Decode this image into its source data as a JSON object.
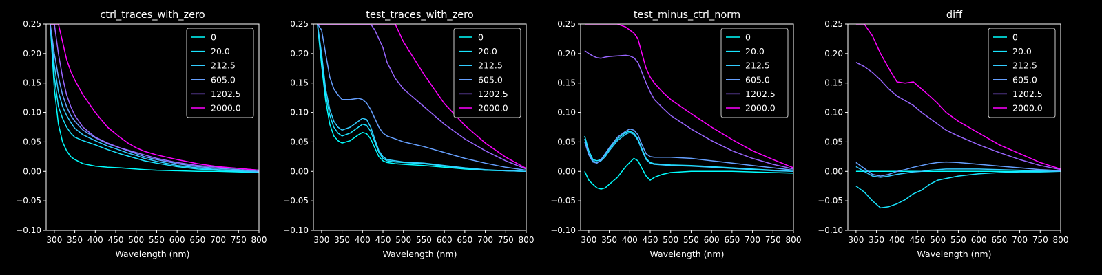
{
  "figure": {
    "background": "#000000",
    "foreground": "#ffffff"
  },
  "chart_data": [
    {
      "type": "line",
      "title": "ctrl_traces_with_zero",
      "xlabel": "Wavelength (nm)",
      "ylabel": "",
      "xlim": [
        280,
        800
      ],
      "ylim": [
        -0.1,
        0.25
      ],
      "xticks": [
        "300",
        "350",
        "400",
        "450",
        "500",
        "550",
        "600",
        "650",
        "700",
        "750",
        "800"
      ],
      "yticks": [
        "−0.10",
        "−0.05",
        "0.00",
        "0.05",
        "0.10",
        "0.15",
        "0.20",
        "0.25"
      ],
      "grid": false,
      "legend": "top-right",
      "x": [
        290,
        300,
        310,
        320,
        330,
        340,
        350,
        370,
        400,
        430,
        460,
        480,
        500,
        520,
        550,
        600,
        650,
        700,
        750,
        800
      ],
      "series": [
        {
          "name": "0",
          "color": "#00ffff",
          "values": [
            0.25,
            0.14,
            0.08,
            0.05,
            0.035,
            0.025,
            0.02,
            0.013,
            0.009,
            0.007,
            0.006,
            0.005,
            0.004,
            0.003,
            0.002,
            0.001,
            0.0,
            0.0,
            -0.001,
            -0.002
          ]
        },
        {
          "name": "20.0",
          "color": "#19e5ff",
          "values": [
            0.25,
            0.16,
            0.11,
            0.09,
            0.075,
            0.065,
            0.058,
            0.052,
            0.045,
            0.037,
            0.03,
            0.026,
            0.022,
            0.018,
            0.014,
            0.008,
            0.004,
            0.002,
            0.0,
            -0.002
          ]
        },
        {
          "name": "212.5",
          "color": "#33ccff",
          "values": [
            0.25,
            0.18,
            0.135,
            0.11,
            0.095,
            0.083,
            0.073,
            0.062,
            0.052,
            0.043,
            0.036,
            0.031,
            0.027,
            0.022,
            0.017,
            0.01,
            0.006,
            0.003,
            0.001,
            -0.001
          ]
        },
        {
          "name": "605.0",
          "color": "#66a0ff",
          "values": [
            0.25,
            0.2,
            0.16,
            0.13,
            0.11,
            0.095,
            0.085,
            0.07,
            0.057,
            0.047,
            0.04,
            0.035,
            0.03,
            0.025,
            0.02,
            0.013,
            0.008,
            0.005,
            0.003,
            0.0
          ]
        },
        {
          "name": "1202.5",
          "color": "#9966ff",
          "values": [
            0.25,
            0.25,
            0.2,
            0.16,
            0.13,
            0.11,
            0.095,
            0.075,
            0.058,
            0.048,
            0.04,
            0.036,
            0.032,
            0.028,
            0.022,
            0.015,
            0.01,
            0.007,
            0.005,
            0.002
          ]
        },
        {
          "name": "2000.0",
          "color": "#ff00ff",
          "values": [
            0.25,
            0.25,
            0.25,
            0.22,
            0.19,
            0.17,
            0.155,
            0.13,
            0.1,
            0.075,
            0.058,
            0.048,
            0.04,
            0.034,
            0.028,
            0.02,
            0.013,
            0.008,
            0.005,
            0.002
          ]
        }
      ]
    },
    {
      "type": "line",
      "title": "test_traces_with_zero",
      "xlabel": "Wavelength (nm)",
      "ylabel": "",
      "xlim": [
        280,
        800
      ],
      "ylim": [
        -0.1,
        0.25
      ],
      "xticks": [
        "300",
        "350",
        "400",
        "450",
        "500",
        "550",
        "600",
        "650",
        "700",
        "750",
        "800"
      ],
      "yticks": [
        "−0.10",
        "−0.05",
        "0.00",
        "0.05",
        "0.10",
        "0.15",
        "0.20",
        "0.25"
      ],
      "grid": false,
      "legend": "top-right",
      "x": [
        290,
        300,
        310,
        320,
        330,
        340,
        350,
        370,
        390,
        400,
        410,
        420,
        430,
        440,
        450,
        460,
        480,
        500,
        550,
        600,
        650,
        700,
        750,
        800
      ],
      "series": [
        {
          "name": "0",
          "color": "#00ffff",
          "values": [
            0.25,
            0.18,
            0.12,
            0.08,
            0.06,
            0.052,
            0.048,
            0.052,
            0.062,
            0.066,
            0.064,
            0.055,
            0.04,
            0.025,
            0.018,
            0.015,
            0.013,
            0.012,
            0.01,
            0.007,
            0.004,
            0.002,
            0.001,
            0.0
          ]
        },
        {
          "name": "20.0",
          "color": "#19e5ff",
          "values": [
            0.25,
            0.19,
            0.13,
            0.095,
            0.075,
            0.065,
            0.06,
            0.065,
            0.075,
            0.08,
            0.078,
            0.068,
            0.05,
            0.032,
            0.022,
            0.018,
            0.016,
            0.015,
            0.013,
            0.009,
            0.005,
            0.002,
            0.001,
            0.0
          ]
        },
        {
          "name": "212.5",
          "color": "#33ccff",
          "values": [
            0.25,
            0.2,
            0.14,
            0.105,
            0.085,
            0.075,
            0.07,
            0.075,
            0.085,
            0.09,
            0.088,
            0.075,
            0.055,
            0.035,
            0.025,
            0.02,
            0.018,
            0.016,
            0.014,
            0.01,
            0.006,
            0.003,
            0.001,
            0.0
          ]
        },
        {
          "name": "605.0",
          "color": "#66a0ff",
          "values": [
            0.25,
            0.24,
            0.2,
            0.16,
            0.14,
            0.13,
            0.122,
            0.122,
            0.124,
            0.122,
            0.116,
            0.105,
            0.09,
            0.075,
            0.065,
            0.06,
            0.055,
            0.05,
            0.042,
            0.032,
            0.022,
            0.014,
            0.007,
            0.002
          ]
        },
        {
          "name": "1202.5",
          "color": "#9966ff",
          "values": [
            0.25,
            0.25,
            0.25,
            0.25,
            0.25,
            0.25,
            0.25,
            0.25,
            0.25,
            0.25,
            0.25,
            0.25,
            0.24,
            0.225,
            0.21,
            0.185,
            0.158,
            0.14,
            0.11,
            0.08,
            0.055,
            0.035,
            0.018,
            0.004
          ]
        },
        {
          "name": "2000.0",
          "color": "#ff00ff",
          "values": [
            0.25,
            0.25,
            0.25,
            0.25,
            0.25,
            0.25,
            0.25,
            0.25,
            0.25,
            0.25,
            0.25,
            0.25,
            0.25,
            0.25,
            0.25,
            0.25,
            0.25,
            0.22,
            0.165,
            0.115,
            0.078,
            0.048,
            0.024,
            0.005
          ]
        }
      ]
    },
    {
      "type": "line",
      "title": "test_minus_ctrl_norm",
      "xlabel": "Wavelength (nm)",
      "ylabel": "",
      "xlim": [
        280,
        800
      ],
      "ylim": [
        -0.1,
        0.25
      ],
      "xticks": [
        "300",
        "350",
        "400",
        "450",
        "500",
        "550",
        "600",
        "650",
        "700",
        "750",
        "800"
      ],
      "yticks": [
        "−0.10",
        "−0.05",
        "0.00",
        "0.05",
        "0.10",
        "0.15",
        "0.20",
        "0.25"
      ],
      "grid": false,
      "legend": "top-right",
      "x": [
        290,
        300,
        310,
        320,
        330,
        340,
        350,
        370,
        390,
        400,
        410,
        420,
        430,
        440,
        450,
        460,
        480,
        500,
        550,
        600,
        650,
        700,
        750,
        800
      ],
      "series": [
        {
          "name": "0",
          "color": "#00ffff",
          "values": [
            0.0,
            -0.015,
            -0.022,
            -0.028,
            -0.03,
            -0.028,
            -0.022,
            -0.01,
            0.008,
            0.015,
            0.022,
            0.018,
            0.005,
            -0.008,
            -0.015,
            -0.01,
            -0.005,
            -0.002,
            0.0,
            0.0,
            0.0,
            -0.001,
            -0.002,
            -0.003
          ]
        },
        {
          "name": "20.0",
          "color": "#19e5ff",
          "values": [
            0.06,
            0.035,
            0.02,
            0.018,
            0.02,
            0.028,
            0.038,
            0.055,
            0.066,
            0.068,
            0.065,
            0.055,
            0.038,
            0.022,
            0.015,
            0.013,
            0.012,
            0.011,
            0.01,
            0.008,
            0.006,
            0.004,
            0.002,
            0.0
          ]
        },
        {
          "name": "212.5",
          "color": "#33ccff",
          "values": [
            0.055,
            0.03,
            0.018,
            0.015,
            0.018,
            0.025,
            0.035,
            0.052,
            0.063,
            0.066,
            0.063,
            0.053,
            0.036,
            0.02,
            0.014,
            0.012,
            0.011,
            0.01,
            0.009,
            0.007,
            0.005,
            0.003,
            0.001,
            0.0
          ]
        },
        {
          "name": "605.0",
          "color": "#66a0ff",
          "values": [
            0.05,
            0.028,
            0.016,
            0.014,
            0.02,
            0.03,
            0.04,
            0.058,
            0.068,
            0.072,
            0.07,
            0.062,
            0.045,
            0.03,
            0.025,
            0.024,
            0.024,
            0.024,
            0.022,
            0.018,
            0.014,
            0.01,
            0.006,
            0.002
          ]
        },
        {
          "name": "1202.5",
          "color": "#9966ff",
          "values": [
            0.205,
            0.2,
            0.196,
            0.193,
            0.192,
            0.194,
            0.195,
            0.196,
            0.197,
            0.196,
            0.193,
            0.185,
            0.168,
            0.15,
            0.135,
            0.122,
            0.108,
            0.095,
            0.072,
            0.052,
            0.035,
            0.022,
            0.012,
            0.004
          ]
        },
        {
          "name": "2000.0",
          "color": "#ff00ff",
          "values": [
            0.25,
            0.25,
            0.25,
            0.25,
            0.25,
            0.25,
            0.25,
            0.25,
            0.245,
            0.24,
            0.235,
            0.225,
            0.2,
            0.175,
            0.16,
            0.15,
            0.135,
            0.122,
            0.098,
            0.075,
            0.054,
            0.035,
            0.02,
            0.006
          ]
        }
      ]
    },
    {
      "type": "line",
      "title": "diff",
      "xlabel": "Wavelength (nm)",
      "ylabel": "",
      "xlim": [
        280,
        800
      ],
      "ylim": [
        -0.1,
        0.25
      ],
      "xticks": [
        "300",
        "350",
        "400",
        "450",
        "500",
        "550",
        "600",
        "650",
        "700",
        "750",
        "800"
      ],
      "yticks": [
        "−0.10",
        "−0.05",
        "0.00",
        "0.05",
        "0.10",
        "0.15",
        "0.20",
        "0.25"
      ],
      "grid": false,
      "legend": "top-right",
      "x": [
        300,
        320,
        340,
        360,
        380,
        400,
        420,
        440,
        460,
        480,
        500,
        520,
        550,
        600,
        650,
        700,
        750,
        800
      ],
      "series": [
        {
          "name": "0",
          "color": "#00ffff",
          "values": [
            0.0,
            0.0,
            0.0,
            0.0,
            0.0,
            0.0,
            0.0,
            0.0,
            0.0,
            0.0,
            0.0,
            0.0,
            0.0,
            0.0,
            0.0,
            0.0,
            0.0,
            0.0
          ]
        },
        {
          "name": "20.0",
          "color": "#19e5ff",
          "values": [
            -0.025,
            -0.035,
            -0.05,
            -0.062,
            -0.06,
            -0.055,
            -0.048,
            -0.038,
            -0.032,
            -0.022,
            -0.015,
            -0.012,
            -0.008,
            -0.004,
            -0.002,
            -0.001,
            -0.001,
            0.0
          ]
        },
        {
          "name": "212.5",
          "color": "#33ccff",
          "values": [
            0.008,
            0.0,
            -0.008,
            -0.01,
            -0.008,
            -0.005,
            -0.003,
            -0.001,
            0.0,
            0.002,
            0.003,
            0.004,
            0.004,
            0.004,
            0.003,
            0.002,
            0.001,
            0.0
          ]
        },
        {
          "name": "605.0",
          "color": "#66a0ff",
          "values": [
            0.015,
            0.005,
            -0.005,
            -0.008,
            -0.005,
            0.0,
            0.003,
            0.007,
            0.01,
            0.013,
            0.015,
            0.016,
            0.015,
            0.012,
            0.009,
            0.006,
            0.003,
            0.001
          ]
        },
        {
          "name": "1202.5",
          "color": "#9966ff",
          "values": [
            0.185,
            0.178,
            0.168,
            0.155,
            0.14,
            0.128,
            0.12,
            0.112,
            0.1,
            0.09,
            0.08,
            0.07,
            0.06,
            0.045,
            0.032,
            0.02,
            0.01,
            0.003
          ]
        },
        {
          "name": "2000.0",
          "color": "#ff00ff",
          "values": [
            0.25,
            0.25,
            0.23,
            0.2,
            0.175,
            0.152,
            0.15,
            0.152,
            0.14,
            0.128,
            0.115,
            0.1,
            0.085,
            0.065,
            0.045,
            0.03,
            0.015,
            0.004
          ]
        }
      ]
    }
  ]
}
